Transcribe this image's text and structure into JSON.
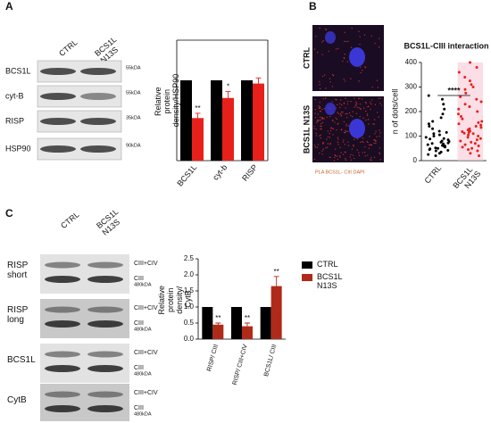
{
  "figure": {
    "panel_labels": [
      "A",
      "B",
      "C"
    ],
    "blot_a": {
      "columns": [
        "CTRL",
        "BCS1L N13S"
      ],
      "rows": [
        "BCS1L",
        "cyt-B",
        "RISP",
        "HSP90"
      ],
      "sizes": [
        "55kDA",
        "55kDA",
        "35kDA",
        "90kDA"
      ]
    },
    "images_b": {
      "rows": [
        "CTRL",
        "BCS1L N13S"
      ],
      "caption": "PLA BCS1L- CIII DAPI"
    },
    "blot_c": {
      "columns": [
        "CTRL",
        "BCS1L N13S"
      ],
      "rows": [
        "RISP short",
        "RISP long",
        "BCS1L",
        "CytB"
      ],
      "band_labels": [
        [
          "CIII+CIV",
          "CIII",
          "480kDA"
        ],
        [
          "CIII+CIV",
          "CIII",
          "480kDA"
        ],
        [
          "CIII+CIV",
          "CIII",
          "480kDA"
        ],
        [
          "CIII+CIV",
          "CIII",
          "480kDA"
        ]
      ]
    }
  },
  "chart_data": [
    {
      "type": "bar",
      "y_label": "Relative protein density/HSP90",
      "categories": [
        "BCS1L",
        "cyt-b",
        "RISP"
      ],
      "ylim": [
        0,
        1.5
      ],
      "series": [
        {
          "color": "#000000",
          "values": [
            1,
            1,
            1
          ]
        },
        {
          "color": "#e8201c",
          "values": [
            0.53,
            0.78,
            0.96
          ],
          "errors": [
            0.06,
            0.08,
            0.07
          ],
          "significance": [
            "**",
            "*",
            null
          ]
        }
      ]
    },
    {
      "type": "scatter",
      "title": "BCS1L-CIII interaction",
      "y_label": "n of dots/cell",
      "categories": [
        "CTRL",
        "BCS1L N13S"
      ],
      "colors": [
        "#000000",
        "#e8201c"
      ],
      "ylim": [
        0,
        400
      ],
      "yticks": [
        0,
        100,
        200,
        300,
        400
      ],
      "significance": "****",
      "values": [
        [
          20,
          25,
          30,
          35,
          40,
          42,
          45,
          48,
          50,
          52,
          55,
          58,
          60,
          62,
          65,
          68,
          70,
          72,
          75,
          78,
          80,
          85,
          88,
          90,
          95,
          100,
          105,
          110,
          115,
          120,
          130,
          140,
          150,
          160,
          175,
          190,
          210,
          230,
          250,
          265
        ],
        [
          20,
          30,
          40,
          45,
          50,
          55,
          60,
          65,
          70,
          75,
          80,
          85,
          90,
          95,
          100,
          105,
          110,
          112,
          115,
          118,
          120,
          125,
          130,
          135,
          140,
          145,
          150,
          155,
          160,
          170,
          180,
          190,
          200,
          210,
          220,
          230,
          240,
          250,
          260,
          275,
          290,
          300,
          310,
          325,
          340,
          360,
          380,
          400
        ]
      ]
    },
    {
      "type": "bar",
      "y_label": "Relative protein density/ CytB",
      "categories": [
        "RISP/ CIII",
        "RISP/ CIII+CIV",
        "BCS1L/ CIII"
      ],
      "ylim": [
        0,
        2.5
      ],
      "yticks": [
        {
          "value": 0,
          "label": "0.0"
        },
        0.5,
        {
          "value": 1,
          "label": "1.0"
        },
        1.5,
        {
          "value": 2,
          "label": "2.0"
        },
        2.5
      ],
      "series": [
        {
          "name": "CTRL",
          "color": "#000000",
          "values": [
            1,
            1,
            1
          ]
        },
        {
          "name": "BCS1L N13S",
          "color": "#b02a1a",
          "values": [
            0.45,
            0.4,
            1.65
          ],
          "errors": [
            0.05,
            0.1,
            0.3
          ],
          "significance": [
            "**",
            "**",
            "**"
          ]
        }
      ]
    }
  ]
}
